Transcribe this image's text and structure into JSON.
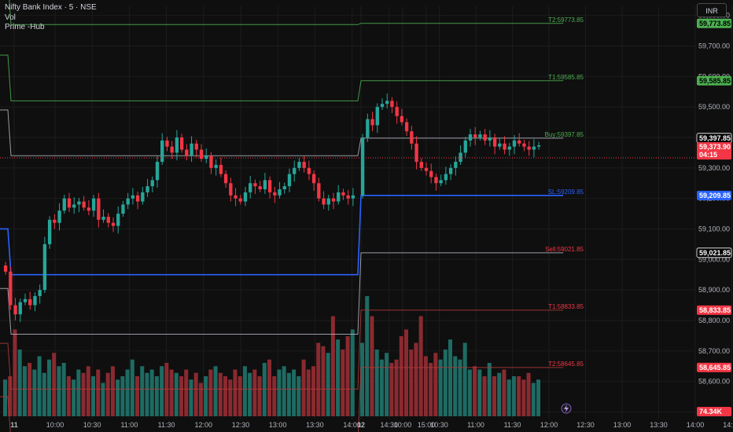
{
  "legend": {
    "symbol": "Nifty Bank Index · 5 · NSE",
    "vol": "Vol",
    "indicator": "Prime -Hub"
  },
  "currency_button": "INR",
  "price_axis": [
    "59,800.00",
    "59,700.00",
    "59,600.00",
    "59,500.00",
    "59,400.00",
    "59,300.00",
    "59,200.00",
    "59,100.00",
    "59,000.00",
    "58,900.00",
    "58,800.00",
    "58,700.00",
    "58,600.00",
    "58,500.00"
  ],
  "time_axis": [
    "11",
    "10:00",
    "10:30",
    "11:00",
    "11:30",
    "12:00",
    "12:30",
    "13:00",
    "13:30",
    "14:00",
    "14:30",
    "15:00",
    "12",
    "10:00",
    "10:30",
    "11:00",
    "11:30",
    "12:00",
    "12:30",
    "13:00",
    "13:30",
    "14:00",
    "14:30",
    "15:00"
  ],
  "price_tags": [
    {
      "value": "59,773.85",
      "color": "#4caf50",
      "text_color": "#000000"
    },
    {
      "value": "59,585.85",
      "color": "#4caf50",
      "text_color": "#000000"
    },
    {
      "value": "59,397.85",
      "color": "#000000",
      "text_color": "#ffffff",
      "border": "#ffffff"
    },
    {
      "value": "59,373.90",
      "sub": "04:15",
      "color": "#f23645",
      "text_color": "#ffffff"
    },
    {
      "value": "59,209.85",
      "color": "#2962ff",
      "text_color": "#ffffff"
    },
    {
      "value": "59,021.85",
      "color": "#000000",
      "text_color": "#ffffff",
      "border": "#ffffff"
    },
    {
      "value": "58,833.85",
      "color": "#f23645",
      "text_color": "#ffffff"
    },
    {
      "value": "58,645.85",
      "color": "#f23645",
      "text_color": "#ffffff"
    },
    {
      "value": "74.34K",
      "color": "#f23645",
      "text_color": "#ffffff"
    }
  ],
  "level_labels": [
    {
      "text": "T2:59773.85",
      "color": "#4caf50"
    },
    {
      "text": "T1:59585.85",
      "color": "#4caf50"
    },
    {
      "text": "Buy:59397.85",
      "color": "#4caf50"
    },
    {
      "text": "SL:59209.85",
      "color": "#2962ff"
    },
    {
      "text": "Sell:59021.85",
      "color": "#f23645"
    },
    {
      "text": "T1:58833.85",
      "color": "#f23645"
    },
    {
      "text": "T2:58645.85",
      "color": "#f23645"
    }
  ],
  "colors": {
    "up": "#26a69a",
    "down": "#f23645",
    "vol_up": "#1e6b63",
    "vol_down": "#8a2a30",
    "target_green": "#4caf50",
    "stoploss_blue": "#2962ff",
    "neutral_grey": "#b2b5be",
    "target_red": "#b23a3a",
    "background": "#0f0f0f",
    "grid": "#1c1c1c"
  },
  "icons": {
    "replay": "lightning-icon"
  },
  "chart_data": {
    "type": "candlestick",
    "title": "Nifty Bank Index · 5 · NSE",
    "xlabel": "",
    "ylabel": "",
    "ylim": [
      58460,
      59830
    ],
    "grid": true,
    "levels": {
      "day1": {
        "T2_up": 59770,
        "T1_up": 59520,
        "Buy": 59340,
        "SL": 58950,
        "Sell": 58755,
        "T1_dn": 58575,
        "T2_dn": 58400
      },
      "day2": {
        "T2_up": 59773.85,
        "T1_up": 59585.85,
        "Buy": 59397.85,
        "SL": 59209.85,
        "Sell": 59021.85,
        "T1_dn": 58833.85,
        "T2_dn": 58645.85
      }
    },
    "last_price": 59373.9,
    "last_volume": "74.34K",
    "candles_day1_close": [
      58960,
      58850,
      58820,
      58860,
      58870,
      58850,
      58880,
      58900,
      59050,
      59130,
      59120,
      59160,
      59200,
      59170,
      59180,
      59190,
      59170,
      59160,
      59200,
      59130,
      59140,
      59120,
      59110,
      59150,
      59180,
      59200,
      59210,
      59190,
      59220,
      59240,
      59260,
      59320,
      59390,
      59370,
      59350,
      59400,
      59360,
      59340,
      59380,
      59360,
      59330,
      59340,
      59300,
      59310,
      59280,
      59250,
      59210,
      59200,
      59190,
      59220,
      59250,
      59240,
      59230,
      59260,
      59220,
      59210,
      59230,
      59240,
      59280,
      59300,
      59320,
      59300,
      59280,
      59250,
      59200,
      59180,
      59200,
      59190,
      59220,
      59210,
      59200,
      59210
    ],
    "candles_day2_close": [
      59400,
      59460,
      59440,
      59500,
      59510,
      59520,
      59500,
      59470,
      59450,
      59420,
      59380,
      59320,
      59300,
      59290,
      59270,
      59250,
      59260,
      59280,
      59300,
      59320,
      59350,
      59390,
      59410,
      59400,
      59410,
      59390,
      59400,
      59370,
      59380,
      59360,
      59370,
      59390,
      59380,
      59370,
      59360,
      59370,
      59374
    ],
    "volume_day1": [
      55,
      60,
      130,
      100,
      75,
      80,
      70,
      90,
      65,
      85,
      95,
      75,
      80,
      60,
      55,
      70,
      65,
      75,
      60,
      70,
      50,
      65,
      75,
      55,
      60,
      70,
      85,
      60,
      75,
      65,
      70,
      60,
      75,
      80,
      70,
      65,
      60,
      70,
      55,
      65,
      50,
      60,
      70,
      75,
      65,
      60,
      55,
      70,
      60,
      75,
      65,
      70,
      60,
      80,
      85,
      60,
      70,
      75,
      65,
      70,
      60,
      85,
      70,
      75,
      110,
      105,
      95,
      150,
      115,
      100,
      120,
      130
    ],
    "volume_day2": [
      110,
      180,
      150,
      100,
      85,
      95,
      80,
      85,
      120,
      130,
      100,
      110,
      150,
      90,
      80,
      95,
      85,
      100,
      115,
      90,
      85,
      110,
      70,
      75,
      70,
      60,
      80,
      60,
      65,
      70,
      55,
      60,
      60,
      55,
      65,
      50,
      55
    ]
  }
}
